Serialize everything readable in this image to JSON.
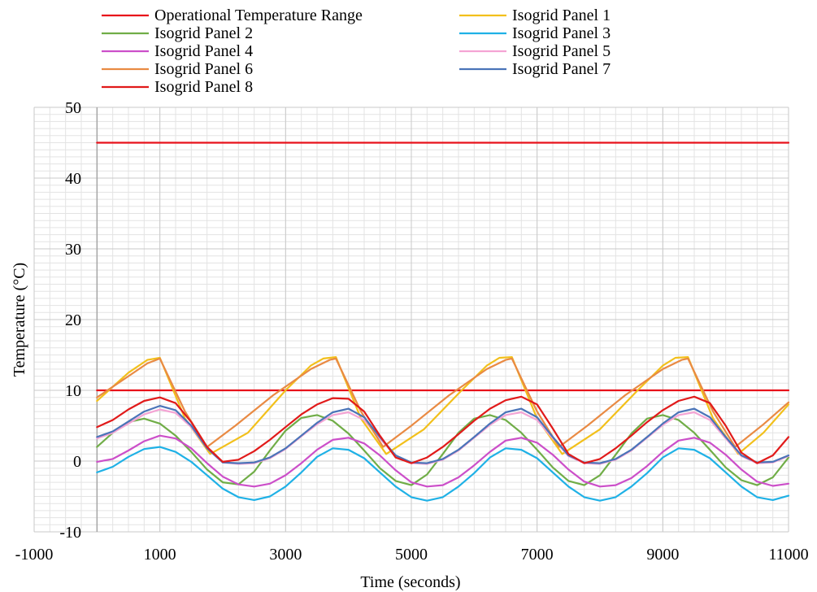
{
  "chart_data": {
    "type": "line",
    "title": "",
    "xlabel": "Time (seconds)",
    "ylabel": "Temperature (°C)",
    "xlim": [
      -1000,
      11000
    ],
    "ylim": [
      -10,
      50
    ],
    "x_ticks": [
      -1000,
      1000,
      3000,
      5000,
      7000,
      9000,
      11000
    ],
    "y_ticks": [
      -10,
      0,
      10,
      20,
      30,
      40,
      50
    ],
    "x_minor_step": 250,
    "y_minor_step": 1,
    "grid": true,
    "legend_position": "top",
    "series": [
      {
        "name": "Operational Temperature Range",
        "color": "#e8111a",
        "segments": [
          {
            "x": [
              0,
              11000
            ],
            "y": [
              45,
              45
            ]
          },
          {
            "x": [
              0,
              11000
            ],
            "y": [
              10,
              10
            ]
          }
        ]
      },
      {
        "name": "Isogrid Panel 1",
        "color": "#f2c01b",
        "x": [
          0,
          500,
          800,
          1000,
          1400,
          1800,
          2400,
          3000,
          3400,
          3600,
          3800,
          4200,
          4600,
          5200,
          5800,
          6200,
          6400,
          6600,
          7000,
          7400,
          8000,
          8600,
          9000,
          9200,
          9400,
          9800,
          10200,
          10600,
          11000
        ],
        "y": [
          8.5,
          12.5,
          14.3,
          14.6,
          6,
          1,
          4,
          10,
          13.5,
          14.5,
          14.7,
          6,
          1,
          4.5,
          10,
          13.5,
          14.6,
          14.7,
          6,
          1,
          4.5,
          10,
          13.5,
          14.6,
          14.7,
          6,
          1,
          4,
          8
        ]
      },
      {
        "name": "Isogrid Panel 2",
        "color": "#70ad47",
        "x": [
          0,
          250,
          500,
          750,
          1000,
          1250,
          1500,
          1750,
          2000,
          2250,
          2500,
          2750,
          3000,
          3250,
          3500,
          3750,
          4000,
          4250,
          4500,
          4750,
          5000,
          5250,
          5500,
          5750,
          6000,
          6250,
          6500,
          6750,
          7000,
          7250,
          7500,
          7750,
          8000,
          8250,
          8500,
          8750,
          9000,
          9250,
          9500,
          9750,
          10000,
          10250,
          10500,
          10750,
          11000
        ],
        "y": [
          2.0,
          4.0,
          5.5,
          6.0,
          5.3,
          3.6,
          1.3,
          -1.2,
          -3.0,
          -3.3,
          -1.5,
          1.5,
          4.3,
          6.1,
          6.5,
          5.7,
          3.9,
          1.5,
          -1.0,
          -2.8,
          -3.4,
          -1.9,
          1.0,
          4.0,
          6.0,
          6.5,
          5.8,
          4.0,
          1.6,
          -0.9,
          -2.8,
          -3.4,
          -2.0,
          0.9,
          3.9,
          6.0,
          6.5,
          5.8,
          4.0,
          1.6,
          -0.9,
          -2.7,
          -3.4,
          -2.3,
          0.5
        ]
      },
      {
        "name": "Isogrid Panel 3",
        "color": "#1fb1e6",
        "x": [
          0,
          250,
          500,
          750,
          1000,
          1250,
          1500,
          1750,
          2000,
          2250,
          2500,
          2750,
          3000,
          3250,
          3500,
          3750,
          4000,
          4250,
          4500,
          4750,
          5000,
          5250,
          5500,
          5750,
          6000,
          6250,
          6500,
          6750,
          7000,
          7250,
          7500,
          7750,
          8000,
          8250,
          8500,
          8750,
          9000,
          9250,
          9500,
          9750,
          10000,
          10250,
          10500,
          10750,
          11000
        ],
        "y": [
          -1.6,
          -0.8,
          0.6,
          1.7,
          2.0,
          1.3,
          -0.1,
          -2.0,
          -3.9,
          -5.1,
          -5.5,
          -5.0,
          -3.6,
          -1.6,
          0.6,
          1.8,
          1.6,
          0.4,
          -1.6,
          -3.6,
          -5.1,
          -5.6,
          -5.1,
          -3.6,
          -1.7,
          0.5,
          1.8,
          1.6,
          0.4,
          -1.6,
          -3.6,
          -5.1,
          -5.6,
          -5.1,
          -3.6,
          -1.7,
          0.5,
          1.8,
          1.6,
          0.4,
          -1.6,
          -3.6,
          -5.1,
          -5.5,
          -4.9
        ]
      },
      {
        "name": "Isogrid Panel 4",
        "color": "#cc4fc9",
        "x": [
          0,
          250,
          500,
          750,
          1000,
          1250,
          1500,
          1750,
          2000,
          2250,
          2500,
          2750,
          3000,
          3250,
          3500,
          3750,
          4000,
          4250,
          4500,
          4750,
          5000,
          5250,
          5500,
          5750,
          6000,
          6250,
          6500,
          6750,
          7000,
          7250,
          7500,
          7750,
          8000,
          8250,
          8500,
          8750,
          9000,
          9250,
          9500,
          9750,
          10000,
          10250,
          10500,
          10750,
          11000
        ],
        "y": [
          -0.1,
          0.3,
          1.5,
          2.8,
          3.6,
          3.2,
          1.8,
          -0.3,
          -2.2,
          -3.3,
          -3.6,
          -3.2,
          -2.0,
          -0.3,
          1.6,
          3.0,
          3.3,
          2.5,
          0.8,
          -1.3,
          -3.0,
          -3.6,
          -3.4,
          -2.3,
          -0.6,
          1.3,
          2.9,
          3.3,
          2.6,
          0.9,
          -1.2,
          -2.9,
          -3.6,
          -3.4,
          -2.4,
          -0.7,
          1.3,
          2.9,
          3.3,
          2.6,
          0.9,
          -1.2,
          -2.9,
          -3.5,
          -3.2
        ]
      },
      {
        "name": "Isogrid Panel 5",
        "color": "#f4a4d4",
        "x": [
          0,
          250,
          500,
          750,
          1000,
          1250,
          1500,
          1750,
          2000,
          2250,
          2500,
          2750,
          3000,
          3250,
          3500,
          3750,
          4000,
          4250,
          4500,
          4750,
          5000,
          5250,
          5500,
          5750,
          6000,
          6250,
          6500,
          6750,
          7000,
          7250,
          7500,
          7750,
          8000,
          8250,
          8500,
          8750,
          9000,
          9250,
          9500,
          9750,
          10000,
          10250,
          10500,
          10750,
          11000
        ],
        "y": [
          3.2,
          4.0,
          5.3,
          6.6,
          7.3,
          6.8,
          4.8,
          1.8,
          -0.2,
          -0.4,
          -0.3,
          0.4,
          1.7,
          3.5,
          5.2,
          6.5,
          6.9,
          5.8,
          3.2,
          0.7,
          -0.3,
          -0.4,
          0.2,
          1.5,
          3.3,
          5.1,
          6.5,
          6.9,
          5.8,
          3.2,
          0.7,
          -0.3,
          -0.4,
          0.2,
          1.5,
          3.3,
          5.1,
          6.5,
          6.9,
          5.8,
          3.2,
          0.7,
          -0.3,
          -0.2,
          0.7
        ]
      },
      {
        "name": "Isogrid Panel 6",
        "color": "#e98a43",
        "x": [
          0,
          500,
          800,
          1000,
          1400,
          1750,
          2200,
          2800,
          3400,
          3700,
          3800,
          4200,
          4550,
          5000,
          5600,
          6200,
          6500,
          6600,
          7000,
          7350,
          7800,
          8400,
          9000,
          9300,
          9400,
          9800,
          10150,
          10600,
          11000
        ],
        "y": [
          9.0,
          12.0,
          13.8,
          14.5,
          7,
          2,
          5,
          9.3,
          13,
          14.3,
          14.5,
          7,
          2,
          5,
          9.3,
          13,
          14.3,
          14.5,
          7,
          2,
          5,
          9.3,
          13,
          14.3,
          14.5,
          7,
          2,
          5.2,
          8.3
        ]
      },
      {
        "name": "Isogrid Panel 7",
        "color": "#4a74b8",
        "x": [
          0,
          250,
          500,
          750,
          1000,
          1250,
          1500,
          1750,
          2000,
          2250,
          2500,
          2750,
          3000,
          3250,
          3500,
          3750,
          4000,
          4250,
          4500,
          4750,
          5000,
          5250,
          5500,
          5750,
          6000,
          6250,
          6500,
          6750,
          7000,
          7250,
          7500,
          7750,
          8000,
          8250,
          8500,
          8750,
          9000,
          9250,
          9500,
          9750,
          10000,
          10250,
          10500,
          10750,
          11000
        ],
        "y": [
          3.4,
          4.2,
          5.6,
          7.0,
          7.8,
          7.2,
          5.0,
          1.8,
          -0.2,
          -0.3,
          -0.2,
          0.5,
          1.8,
          3.6,
          5.4,
          6.9,
          7.4,
          6.2,
          3.4,
          0.8,
          -0.2,
          -0.3,
          0.3,
          1.6,
          3.4,
          5.3,
          6.9,
          7.4,
          6.2,
          3.4,
          0.8,
          -0.2,
          -0.3,
          0.3,
          1.6,
          3.4,
          5.3,
          6.9,
          7.4,
          6.2,
          3.4,
          0.8,
          -0.2,
          -0.1,
          0.8
        ]
      },
      {
        "name": "Isogrid Panel 8",
        "color": "#e11a1a",
        "x": [
          0,
          250,
          500,
          750,
          1000,
          1250,
          1500,
          1750,
          2000,
          2250,
          2500,
          2750,
          3000,
          3250,
          3500,
          3750,
          4000,
          4250,
          4500,
          4750,
          5000,
          5250,
          5500,
          5750,
          6000,
          6250,
          6500,
          6750,
          7000,
          7250,
          7500,
          7750,
          8000,
          8250,
          8500,
          8750,
          9000,
          9250,
          9500,
          9750,
          10000,
          10250,
          10500,
          10750,
          11000
        ],
        "y": [
          4.8,
          5.8,
          7.3,
          8.5,
          9.0,
          8.2,
          5.5,
          2.0,
          -0.1,
          0.2,
          1.4,
          3.0,
          4.8,
          6.6,
          8.0,
          8.9,
          8.8,
          7.0,
          3.6,
          0.5,
          -0.3,
          0.5,
          2.0,
          3.8,
          5.7,
          7.4,
          8.6,
          9.1,
          8.0,
          4.6,
          1.0,
          -0.3,
          0.3,
          1.8,
          3.6,
          5.5,
          7.2,
          8.5,
          9.1,
          8.2,
          5.0,
          1.2,
          -0.3,
          0.8,
          3.4
        ]
      }
    ]
  }
}
